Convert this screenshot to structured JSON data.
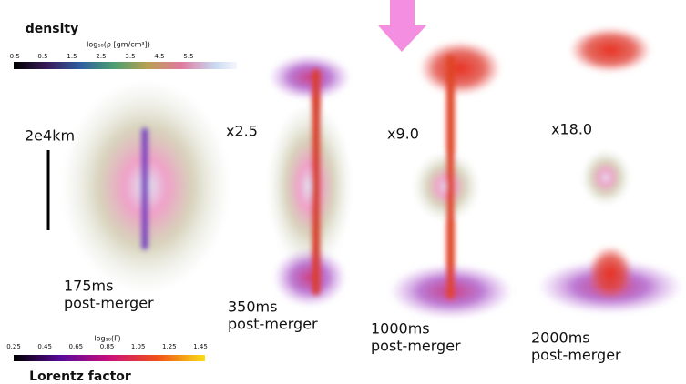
{
  "colorbars": [
    {
      "title": "density",
      "label": "log₁₀(ρ [gm/cm³])",
      "ticks": [
        "-0.5",
        "0.5",
        "1.5",
        "2.5",
        "3.5",
        "4.5",
        "5.5"
      ]
    },
    {
      "title": "Lorentz factor",
      "label": "log₁₀(Γ)",
      "ticks": [
        "0.25",
        "0.45",
        "0.65",
        "0.85",
        "1.05",
        "1.25",
        "1.45"
      ]
    }
  ],
  "scale_bar": {
    "label": "2e4km"
  },
  "panels": [
    {
      "time": "175ms",
      "caption": "post-merger"
    },
    {
      "zoom": "x2.5",
      "time": "350ms",
      "caption": "post-merger"
    },
    {
      "zoom": "x9.0",
      "time": "1000ms",
      "caption": "post-merger"
    },
    {
      "zoom": "x18.0",
      "time": "2000ms",
      "caption": "post-merger"
    }
  ]
}
